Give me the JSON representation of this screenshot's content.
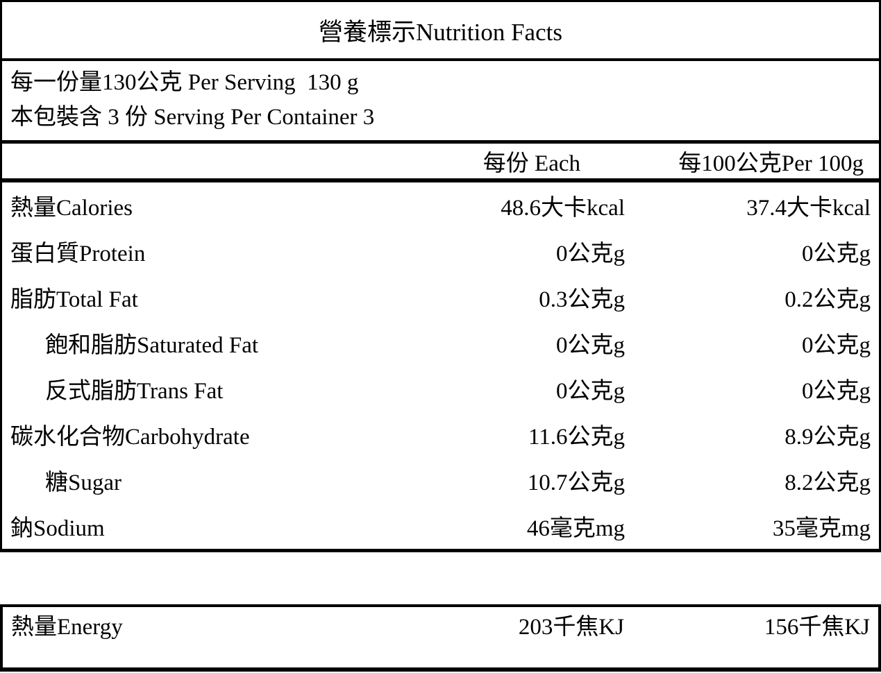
{
  "title": "營養標示Nutrition Facts",
  "serving_info": {
    "per_serving": "每一份量130公克 Per Serving  130 g",
    "per_container": "本包裝含 3 份 Serving Per Container 3"
  },
  "columns": {
    "each": "每份 Each",
    "per_100g": "每100公克Per 100g"
  },
  "rows": [
    {
      "label": "熱量Calories",
      "indent": false,
      "each": "48.6大卡kcal",
      "per_100g": "37.4大卡kcal"
    },
    {
      "label": "蛋白質Protein",
      "indent": false,
      "each": "0公克g",
      "per_100g": "0公克g"
    },
    {
      "label": "脂肪Total Fat",
      "indent": false,
      "each": "0.3公克g",
      "per_100g": "0.2公克g"
    },
    {
      "label": "飽和脂肪Saturated Fat",
      "indent": true,
      "each": "0公克g",
      "per_100g": "0公克g"
    },
    {
      "label": "反式脂肪Trans Fat",
      "indent": true,
      "each": "0公克g",
      "per_100g": "0公克g"
    },
    {
      "label": "碳水化合物Carbohydrate",
      "indent": false,
      "each": "11.6公克g",
      "per_100g": "8.9公克g"
    },
    {
      "label": "糖Sugar",
      "indent": true,
      "each": "10.7公克g",
      "per_100g": "8.2公克g"
    },
    {
      "label": "鈉Sodium",
      "indent": false,
      "each": "46毫克mg",
      "per_100g": "35毫克mg"
    }
  ],
  "energy_row": {
    "label": "熱量Energy",
    "each": "203千焦KJ",
    "per_100g": "156千焦KJ"
  },
  "colors": {
    "background": "#ffffff",
    "text": "#000000",
    "border": "#000000"
  }
}
